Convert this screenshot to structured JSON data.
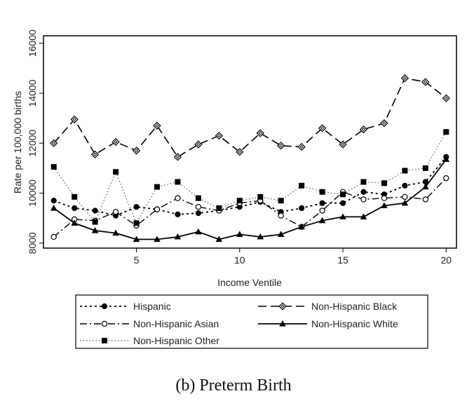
{
  "chart_data": {
    "type": "line",
    "caption": "(b) Preterm Birth",
    "xlabel": "Income Ventile",
    "ylabel": "Rate per 100,000 births",
    "xlim": [
      0.5,
      20.5
    ],
    "ylim": [
      7800,
      16300
    ],
    "xticks": [
      5,
      10,
      15,
      20
    ],
    "yticks": [
      8000,
      10000,
      12000,
      14000,
      16000
    ],
    "grid": false,
    "legend_position": "bottom",
    "x": [
      1,
      2,
      3,
      4,
      5,
      6,
      7,
      8,
      9,
      10,
      11,
      12,
      13,
      14,
      15,
      16,
      17,
      18,
      19,
      20
    ],
    "series": [
      {
        "name": "Hispanic",
        "dash": "dotted",
        "marker": "circle-filled",
        "values": [
          9700,
          9400,
          9300,
          9100,
          9450,
          9350,
          9150,
          9200,
          9300,
          9450,
          9650,
          9250,
          9400,
          9600,
          9600,
          10050,
          9950,
          10300,
          10450,
          11450
        ]
      },
      {
        "name": "Non-Hispanic Black",
        "dash": "dashed",
        "marker": "diamond-open",
        "values": [
          12000,
          12950,
          11550,
          12050,
          11700,
          12700,
          11450,
          11950,
          12300,
          11650,
          12400,
          11900,
          11850,
          12600,
          11950,
          12550,
          12800,
          14600,
          14450,
          13800
        ]
      },
      {
        "name": "Non-Hispanic Asian",
        "dash": "dashdot",
        "marker": "circle-open",
        "values": [
          8250,
          8950,
          8900,
          9250,
          8700,
          9350,
          9800,
          9450,
          9300,
          9600,
          9700,
          9100,
          8650,
          9300,
          10050,
          9750,
          9800,
          9850,
          9750,
          10600
        ]
      },
      {
        "name": "Non-Hispanic White",
        "dash": "solid",
        "marker": "triangle-filled",
        "values": [
          9400,
          8800,
          8500,
          8400,
          8150,
          8150,
          8250,
          8450,
          8150,
          8350,
          8250,
          8350,
          8650,
          8900,
          9050,
          9050,
          9500,
          9600,
          10250,
          11350
        ]
      },
      {
        "name": "Non-Hispanic Other",
        "dash": "fine-dotted",
        "marker": "square-filled",
        "values": [
          11050,
          9850,
          8850,
          10850,
          8800,
          10250,
          10450,
          9800,
          9400,
          9700,
          9850,
          9700,
          10300,
          10050,
          9950,
          10450,
          10400,
          10900,
          11000,
          12450
        ]
      }
    ],
    "legend": [
      [
        "Hispanic",
        "Non-Hispanic Black"
      ],
      [
        "Non-Hispanic Asian",
        "Non-Hispanic White"
      ],
      [
        "Non-Hispanic Other"
      ]
    ]
  }
}
